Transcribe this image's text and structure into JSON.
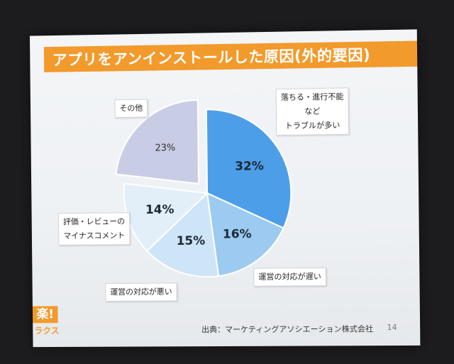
{
  "slide": {
    "title": "アプリをアンインストールした原因(外的要因)",
    "source": "出典：マーケティングアソシエーション株式会社",
    "page_number": "14",
    "logo_mark": "楽!",
    "logo_name": "ラクス"
  },
  "labels": {
    "trouble_line1": "落ちる・進行不能",
    "trouble_line2": "など",
    "trouble_line3": "トラブルが多い",
    "slow_response": "運営の対応が遅い",
    "bad_response": "運営の対応が悪い",
    "review_line1": "評価・レビューの",
    "review_line2": "マイナスコメント",
    "other": "その他"
  },
  "chart_data": {
    "type": "pie",
    "title": "",
    "start": "12 o'clock",
    "direction": "clockwise",
    "slices": [
      {
        "label": "落ちる・進行不能 など トラブルが多い",
        "value": 32,
        "text": "32%",
        "color": "#4c9ee8",
        "exploded": false
      },
      {
        "label": "運営の対応が遅い",
        "value": 16,
        "text": "16%",
        "color": "#9ccaf1",
        "exploded": false
      },
      {
        "label": "運営の対応が悪い",
        "value": 15,
        "text": "15%",
        "color": "#cde5f7",
        "exploded": false
      },
      {
        "label": "評価・レビューのマイナスコメント",
        "value": 14,
        "text": "14%",
        "color": "#e2eff8",
        "exploded": false
      },
      {
        "label": "その他",
        "value": 23,
        "text": "23%",
        "color": "#c8cce4",
        "exploded": true
      }
    ]
  }
}
